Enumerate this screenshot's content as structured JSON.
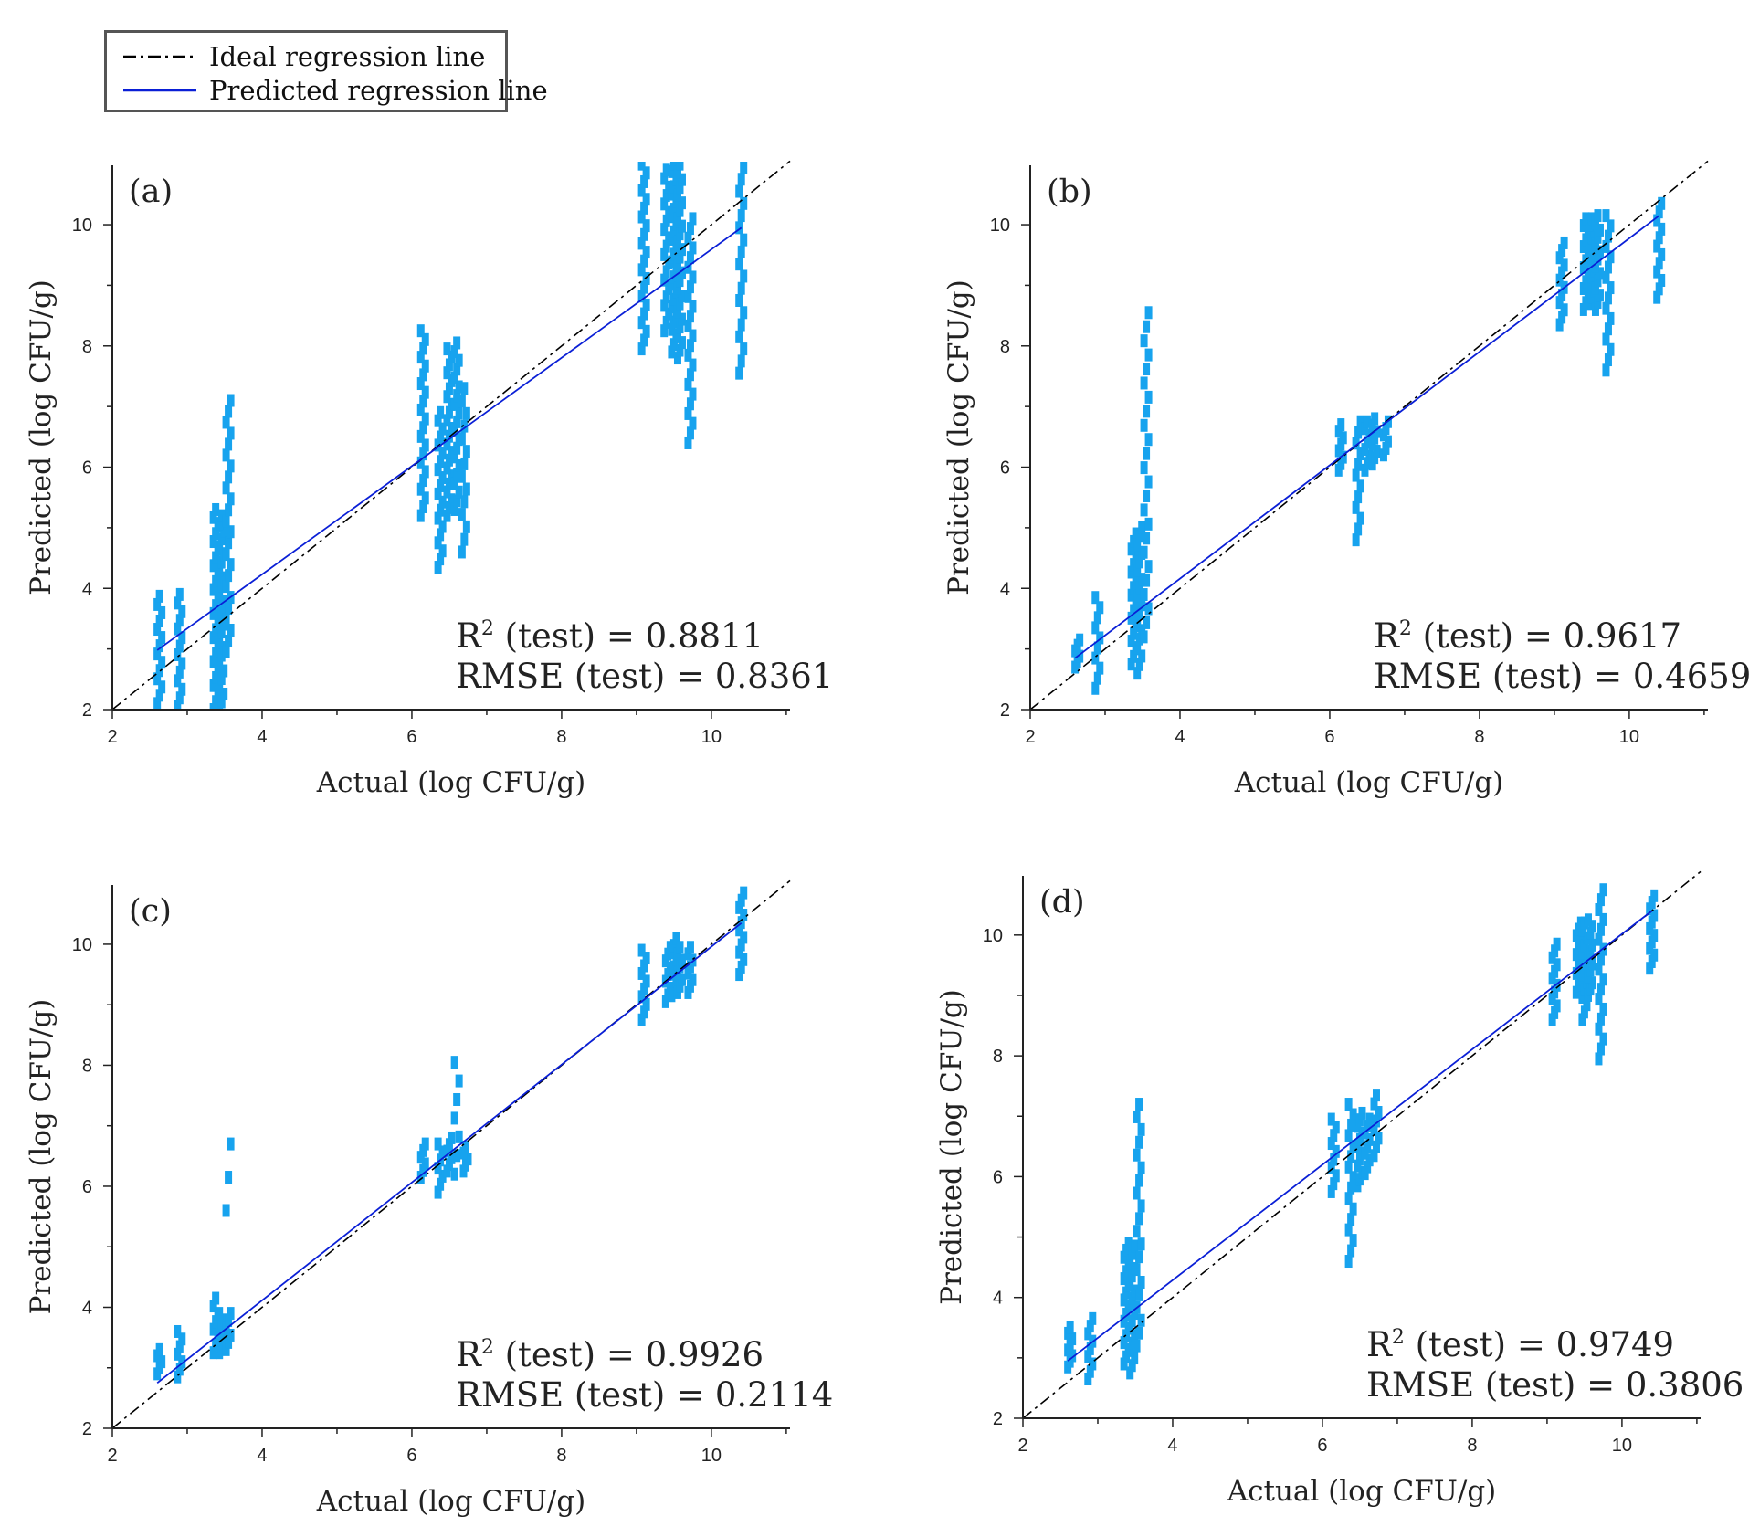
{
  "legend": {
    "ideal": {
      "label": "Ideal regression line",
      "color": "#000000",
      "style": "dash-dot"
    },
    "predicted": {
      "label": "Predicted regression line",
      "color": "#0a1fd6",
      "style": "solid"
    }
  },
  "colors": {
    "points": "#17a3ee",
    "axis": "#222222"
  },
  "chart_data": [
    {
      "type": "scatter",
      "panel": "(a)",
      "xlabel": "Actual (log CFU/g)",
      "ylabel": "Predicted (log CFU/g)",
      "xlim": [
        2,
        11.05
      ],
      "ylim": [
        2,
        10.98
      ],
      "xticks": [
        2,
        4,
        6,
        8,
        10
      ],
      "yticks": [
        2,
        4,
        6,
        8,
        10
      ],
      "r2_label": "R",
      "r2_sup": "2",
      "r2_text": " (test) = 0.8811",
      "rmse_text": "RMSE (test) = 0.8361",
      "ideal_line": [
        [
          2,
          2
        ],
        [
          11.05,
          11.05
        ]
      ],
      "predicted_line": [
        [
          2.6,
          2.98
        ],
        [
          10.4,
          9.95
        ]
      ],
      "clusters": [
        {
          "x": 2.63,
          "ymin": 2.1,
          "ymax": 3.87,
          "n": 14
        },
        {
          "x": 2.9,
          "ymin": 2.05,
          "ymax": 3.9,
          "n": 14
        },
        {
          "x": 3.38,
          "ymin": 2.0,
          "ymax": 5.3,
          "n": 26
        },
        {
          "x": 3.46,
          "ymin": 2.0,
          "ymax": 5.2,
          "n": 26
        },
        {
          "x": 3.55,
          "ymin": 2.95,
          "ymax": 7.1,
          "n": 24
        },
        {
          "x": 6.15,
          "ymin": 5.2,
          "ymax": 8.25,
          "n": 22
        },
        {
          "x": 6.38,
          "ymin": 4.35,
          "ymax": 6.9,
          "n": 20
        },
        {
          "x": 6.5,
          "ymin": 5.2,
          "ymax": 7.95,
          "n": 22
        },
        {
          "x": 6.6,
          "ymin": 5.3,
          "ymax": 8.05,
          "n": 20
        },
        {
          "x": 6.7,
          "ymin": 4.6,
          "ymax": 7.3,
          "n": 14
        },
        {
          "x": 9.1,
          "ymin": 7.95,
          "ymax": 11.0,
          "n": 22
        },
        {
          "x": 9.4,
          "ymin": 8.25,
          "ymax": 10.9,
          "n": 20
        },
        {
          "x": 9.5,
          "ymin": 7.9,
          "ymax": 11.0,
          "n": 26
        },
        {
          "x": 9.58,
          "ymin": 7.8,
          "ymax": 11.0,
          "n": 26
        },
        {
          "x": 9.72,
          "ymin": 6.4,
          "ymax": 10.1,
          "n": 24
        },
        {
          "x": 10.4,
          "ymin": 7.55,
          "ymax": 10.95,
          "n": 18
        }
      ]
    },
    {
      "type": "scatter",
      "panel": "(b)",
      "xlabel": "Actual (log CFU/g)",
      "ylabel": "Predicted (log CFU/g)",
      "xlim": [
        2,
        11.05
      ],
      "ylim": [
        2,
        10.98
      ],
      "xticks": [
        2,
        4,
        6,
        8,
        10
      ],
      "yticks": [
        2,
        4,
        6,
        8,
        10
      ],
      "r2_label": "R",
      "r2_sup": "2",
      "r2_text": " (test) = 0.9617",
      "rmse_text": "RMSE (test) = 0.4659",
      "ideal_line": [
        [
          2,
          2
        ],
        [
          11.05,
          11.05
        ]
      ],
      "predicted_line": [
        [
          2.6,
          2.85
        ],
        [
          10.4,
          10.15
        ]
      ],
      "clusters": [
        {
          "x": 2.63,
          "ymin": 2.7,
          "ymax": 3.15,
          "n": 6
        },
        {
          "x": 2.9,
          "ymin": 2.35,
          "ymax": 3.85,
          "n": 10
        },
        {
          "x": 3.38,
          "ymin": 2.75,
          "ymax": 4.9,
          "n": 18
        },
        {
          "x": 3.46,
          "ymin": 2.6,
          "ymax": 5.0,
          "n": 18
        },
        {
          "x": 3.55,
          "ymin": 3.2,
          "ymax": 8.55,
          "n": 24
        },
        {
          "x": 6.15,
          "ymin": 5.95,
          "ymax": 6.7,
          "n": 8
        },
        {
          "x": 6.38,
          "ymin": 4.8,
          "ymax": 6.75,
          "n": 12
        },
        {
          "x": 6.5,
          "ymin": 5.95,
          "ymax": 6.75,
          "n": 8
        },
        {
          "x": 6.6,
          "ymin": 6.05,
          "ymax": 6.8,
          "n": 8
        },
        {
          "x": 6.75,
          "ymin": 6.2,
          "ymax": 6.75,
          "n": 6
        },
        {
          "x": 9.1,
          "ymin": 8.35,
          "ymax": 9.7,
          "n": 12
        },
        {
          "x": 9.42,
          "ymin": 8.6,
          "ymax": 10.1,
          "n": 14
        },
        {
          "x": 9.5,
          "ymin": 8.7,
          "ymax": 10.1,
          "n": 14
        },
        {
          "x": 9.58,
          "ymin": 8.6,
          "ymax": 10.15,
          "n": 14
        },
        {
          "x": 9.72,
          "ymin": 7.6,
          "ymax": 10.15,
          "n": 16
        },
        {
          "x": 10.4,
          "ymin": 8.8,
          "ymax": 10.35,
          "n": 12
        }
      ]
    },
    {
      "type": "scatter",
      "panel": "(c)",
      "xlabel": "Actual (log CFU/g)",
      "ylabel": "Predicted (log CFU/g)",
      "xlim": [
        2,
        11.05
      ],
      "ylim": [
        2,
        10.98
      ],
      "xticks": [
        2,
        4,
        6,
        8,
        10
      ],
      "yticks": [
        2,
        4,
        6,
        8,
        10
      ],
      "r2_label": "R",
      "r2_sup": "2",
      "r2_text": " (test) = 0.9926",
      "rmse_text": "RMSE (test) = 0.2114",
      "ideal_line": [
        [
          2,
          2
        ],
        [
          11.05,
          11.05
        ]
      ],
      "predicted_line": [
        [
          2.6,
          2.75
        ],
        [
          10.4,
          10.35
        ]
      ],
      "clusters": [
        {
          "x": 2.63,
          "ymin": 2.9,
          "ymax": 3.3,
          "n": 5
        },
        {
          "x": 2.9,
          "ymin": 2.85,
          "ymax": 3.6,
          "n": 7
        },
        {
          "x": 3.38,
          "ymin": 3.25,
          "ymax": 4.15,
          "n": 8
        },
        {
          "x": 3.46,
          "ymin": 3.25,
          "ymax": 3.9,
          "n": 7
        },
        {
          "x": 3.55,
          "ymin": 3.3,
          "ymax": 3.9,
          "n": 6
        },
        {
          "x": 3.55,
          "ymin": 5.6,
          "ymax": 6.7,
          "n": 3
        },
        {
          "x": 6.15,
          "ymin": 6.15,
          "ymax": 6.7,
          "n": 6
        },
        {
          "x": 6.38,
          "ymin": 5.9,
          "ymax": 6.7,
          "n": 7
        },
        {
          "x": 6.5,
          "ymin": 6.25,
          "ymax": 6.8,
          "n": 6
        },
        {
          "x": 6.6,
          "ymin": 6.2,
          "ymax": 8.05,
          "n": 7
        },
        {
          "x": 6.72,
          "ymin": 6.25,
          "ymax": 6.65,
          "n": 5
        },
        {
          "x": 9.1,
          "ymin": 8.75,
          "ymax": 9.9,
          "n": 10
        },
        {
          "x": 9.42,
          "ymin": 9.05,
          "ymax": 9.95,
          "n": 9
        },
        {
          "x": 9.5,
          "ymin": 9.15,
          "ymax": 10.1,
          "n": 9
        },
        {
          "x": 9.58,
          "ymin": 9.2,
          "ymax": 9.95,
          "n": 8
        },
        {
          "x": 9.72,
          "ymin": 9.2,
          "ymax": 9.95,
          "n": 8
        },
        {
          "x": 10.4,
          "ymin": 9.5,
          "ymax": 10.85,
          "n": 12
        }
      ]
    },
    {
      "type": "scatter",
      "panel": "(d)",
      "xlabel": "Actual (log CFU/g)",
      "ylabel": "Predicted (log CFU/g)",
      "xlim": [
        2,
        11.05
      ],
      "ylim": [
        2,
        10.98
      ],
      "xticks": [
        2,
        4,
        6,
        8,
        10
      ],
      "yticks": [
        2,
        4,
        6,
        8,
        10
      ],
      "r2_label": "R",
      "r2_sup": "2",
      "r2_text": " (test) = 0.9749",
      "rmse_text": "RMSE (test) = 0.3806",
      "ideal_line": [
        [
          2,
          2
        ],
        [
          11.05,
          11.05
        ]
      ],
      "predicted_line": [
        [
          2.6,
          2.95
        ],
        [
          10.4,
          10.4
        ]
      ],
      "clusters": [
        {
          "x": 2.63,
          "ymin": 2.85,
          "ymax": 3.5,
          "n": 8
        },
        {
          "x": 2.9,
          "ymin": 2.65,
          "ymax": 3.65,
          "n": 9
        },
        {
          "x": 3.38,
          "ymin": 2.9,
          "ymax": 4.9,
          "n": 18
        },
        {
          "x": 3.46,
          "ymin": 2.75,
          "ymax": 4.85,
          "n": 18
        },
        {
          "x": 3.55,
          "ymin": 3.2,
          "ymax": 7.2,
          "n": 20
        },
        {
          "x": 6.15,
          "ymin": 5.75,
          "ymax": 6.95,
          "n": 10
        },
        {
          "x": 6.38,
          "ymin": 4.6,
          "ymax": 7.2,
          "n": 16
        },
        {
          "x": 6.5,
          "ymin": 5.85,
          "ymax": 7.05,
          "n": 12
        },
        {
          "x": 6.6,
          "ymin": 6.05,
          "ymax": 6.95,
          "n": 9
        },
        {
          "x": 6.72,
          "ymin": 6.35,
          "ymax": 7.35,
          "n": 8
        },
        {
          "x": 9.1,
          "ymin": 8.6,
          "ymax": 9.85,
          "n": 12
        },
        {
          "x": 9.42,
          "ymin": 9.05,
          "ymax": 10.2,
          "n": 12
        },
        {
          "x": 9.5,
          "ymin": 8.6,
          "ymax": 10.2,
          "n": 14
        },
        {
          "x": 9.58,
          "ymin": 9.0,
          "ymax": 10.25,
          "n": 13
        },
        {
          "x": 9.72,
          "ymin": 7.95,
          "ymax": 10.75,
          "n": 18
        },
        {
          "x": 10.4,
          "ymin": 9.45,
          "ymax": 10.65,
          "n": 12
        }
      ]
    }
  ]
}
